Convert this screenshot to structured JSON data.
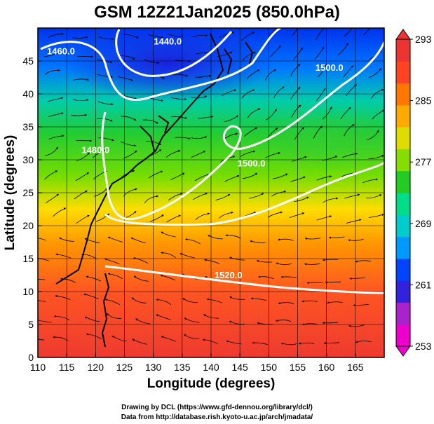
{
  "title": "GSM 12Z21Jan2025 (850.0hPa)",
  "xaxis": {
    "label": "Longitude (degrees)",
    "range": [
      110,
      170
    ],
    "ticks": [
      110,
      115,
      120,
      125,
      130,
      135,
      140,
      145,
      150,
      155,
      160,
      165
    ]
  },
  "yaxis": {
    "label": "Latitude  (degrees)",
    "range": [
      0,
      50
    ],
    "ticks": [
      0,
      5,
      10,
      15,
      20,
      25,
      30,
      35,
      40,
      45
    ]
  },
  "colorbar": {
    "range": [
      253,
      293
    ],
    "ticks": [
      253,
      261,
      269,
      277,
      285,
      293
    ],
    "colors": [
      "#ee00cc",
      "#aa22cc",
      "#3322dd",
      "#0044ff",
      "#0099ff",
      "#00cccc",
      "#00dd88",
      "#22cc22",
      "#88dd00",
      "#dddd00",
      "#ffaa00",
      "#ff7700",
      "#ff4422",
      "#ee3333"
    ]
  },
  "contours": [
    {
      "label": "1440.0",
      "lon": 132.5,
      "lat": 47.5
    },
    {
      "label": "1460.0",
      "lon": 114,
      "lat": 46
    },
    {
      "label": "1480.0",
      "lon": 120,
      "lat": 31
    },
    {
      "label": "1500.0",
      "lon": 147,
      "lat": 29
    },
    {
      "label": "1500.0",
      "lon": 160.5,
      "lat": 43.5
    },
    {
      "label": "1520.0",
      "lon": 143,
      "lat": 12
    }
  ],
  "credits": [
    "Drawing by DCL (https://www.gfd-dennou.org/library/dcl/)",
    "Data from http://database.rish.kyoto-u.ac.jp/arch/jmadata/"
  ]
}
